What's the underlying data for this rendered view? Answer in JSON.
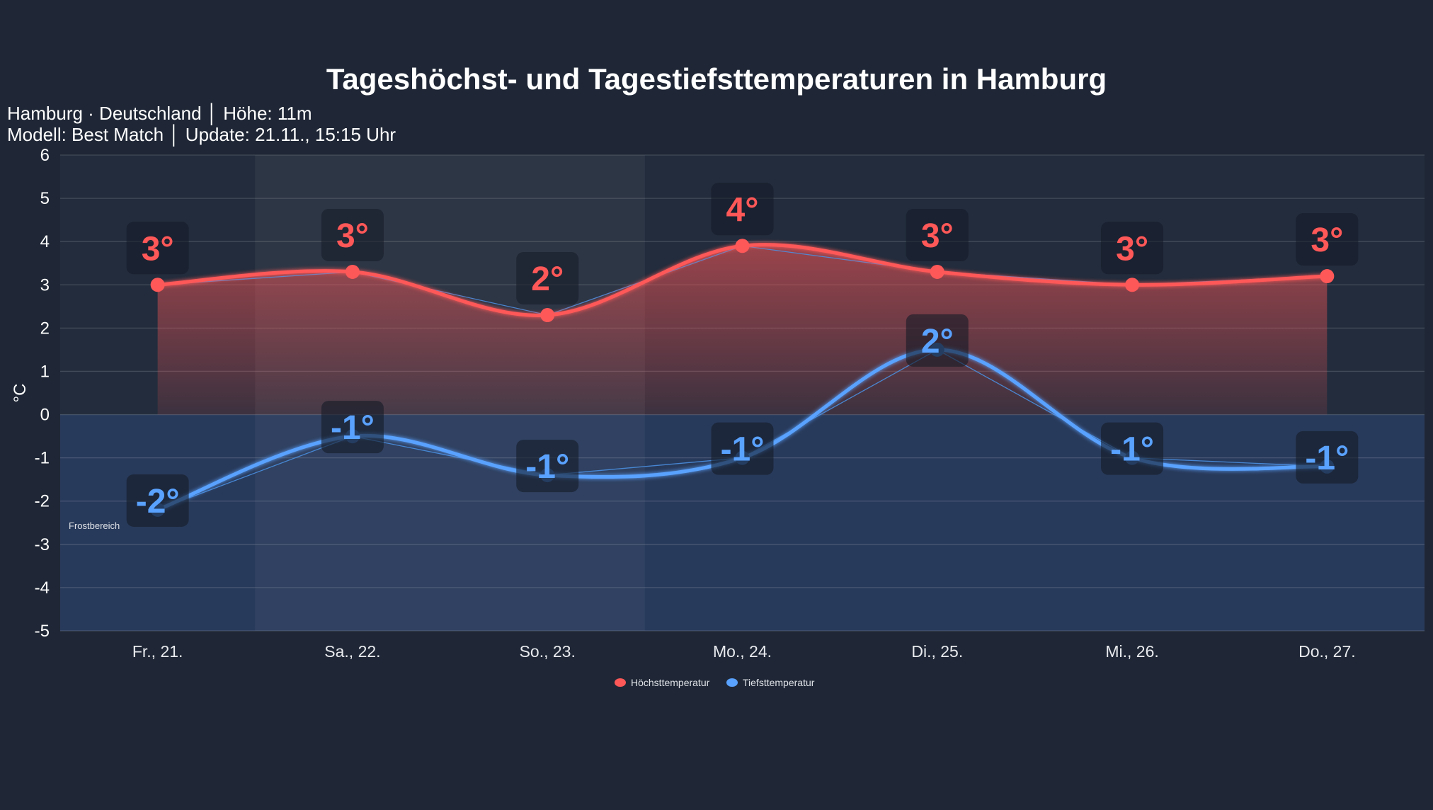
{
  "chart_data": {
    "type": "line",
    "title": "Tageshöchst- und Tagestiefsttemperaturen in Hamburg",
    "subtitle_lines": [
      "Hamburg · Deutschland │ Höhe: 11m",
      "Modell: Best Match │ Update: 21.11., 15:15 Uhr"
    ],
    "ylabel": "°C",
    "xlabel": "",
    "ylim": [
      -5,
      6
    ],
    "yticks": [
      6,
      5,
      4,
      3,
      2,
      1,
      0,
      -1,
      -2,
      -3,
      -4,
      -5
    ],
    "categories": [
      "Fr., 21.",
      "Sa., 22.",
      "So., 23.",
      "Mo., 24.",
      "Di., 25.",
      "Mi., 26.",
      "Do., 27."
    ],
    "weekend_highlight": [
      "Sa., 22.",
      "So., 23."
    ],
    "frost_zone_label": "Frostbereich",
    "grid": true,
    "legend_position": "bottom",
    "series": [
      {
        "name": "Höchsttemperatur",
        "color": "#ff5858",
        "values": [
          3.0,
          3.3,
          2.3,
          3.9,
          3.3,
          3.0,
          3.2
        ],
        "labels": [
          "3°",
          "3°",
          "2°",
          "4°",
          "3°",
          "3°",
          "3°"
        ]
      },
      {
        "name": "Tiefsttemperatur",
        "color": "#5aa2ff",
        "values": [
          -2.2,
          -0.5,
          -1.4,
          -1.0,
          1.5,
          -1.0,
          -1.2
        ],
        "labels": [
          "-2°",
          "-1°",
          "-1°",
          "-1°",
          "2°",
          "-1°",
          "-1°"
        ]
      }
    ]
  }
}
